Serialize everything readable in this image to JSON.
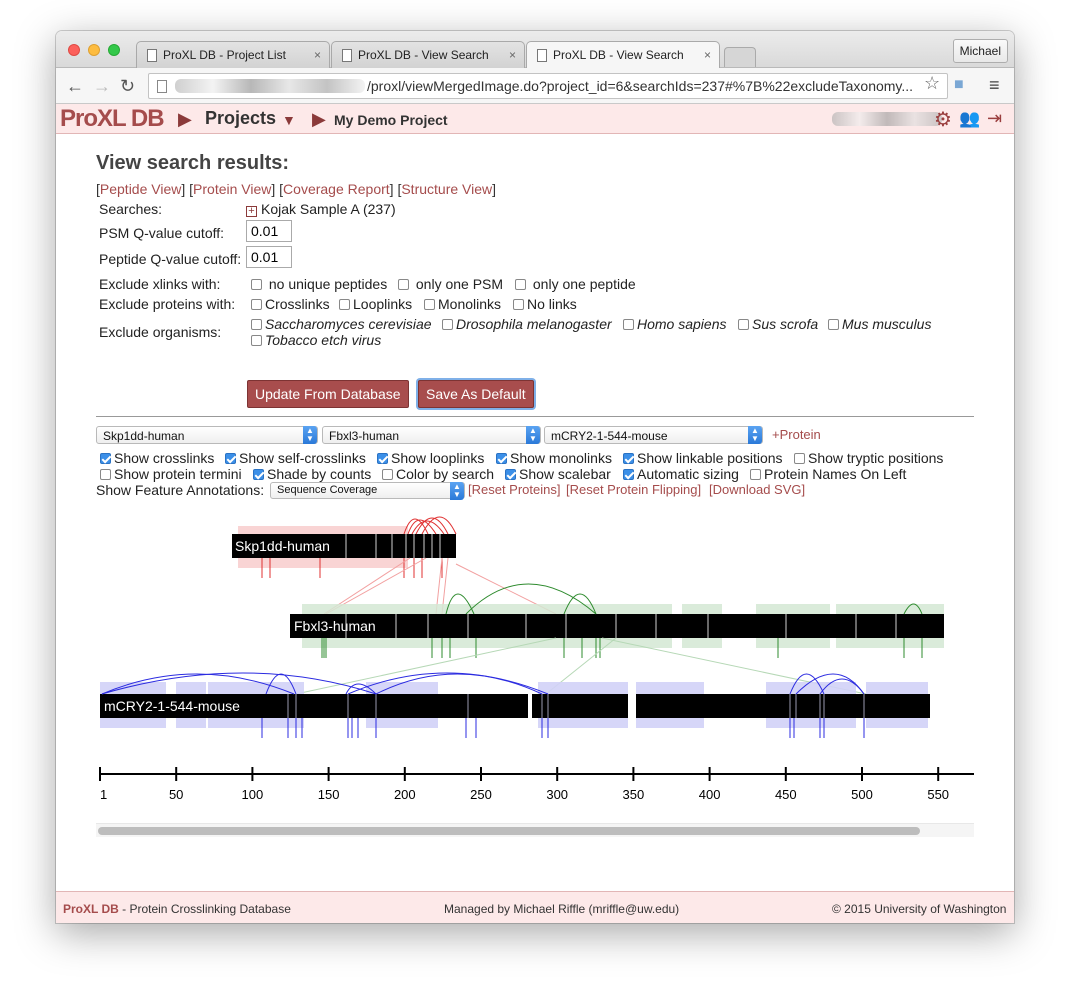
{
  "browser": {
    "tabs": [
      {
        "title": "ProXL DB - Project List",
        "close": "×"
      },
      {
        "title": "ProXL DB - View Search",
        "close": "×"
      },
      {
        "title": "ProXL DB - View Search",
        "close": "×"
      }
    ],
    "user": "Michael",
    "url": "/proxl/viewMergedImage.do?project_id=6&searchIds=237#%7B%22excludeTaxonomy..."
  },
  "header": {
    "logo": "ProXL DB",
    "projects": "Projects",
    "project_name": "My Demo Project"
  },
  "page": {
    "title": "View search results:",
    "views": {
      "peptide": "Peptide View",
      "protein": "Protein View",
      "coverage": "Coverage Report",
      "structure": "Structure View"
    },
    "searches_label": "Searches:",
    "search_name": "Kojak Sample A (237)",
    "psm_label": "PSM Q-value cutoff:",
    "psm_value": "0.01",
    "peptide_label": "Peptide Q-value cutoff:",
    "peptide_value": "0.01",
    "exclude_xlinks_label": "Exclude xlinks with:",
    "exclude_xlinks": [
      "no unique peptides",
      "only one PSM",
      "only one peptide"
    ],
    "exclude_proteins_label": "Exclude proteins with:",
    "exclude_proteins": [
      "Crosslinks",
      "Looplinks",
      "Monolinks",
      "No links"
    ],
    "exclude_organisms_label": "Exclude organisms:",
    "organisms": [
      "Saccharomyces cerevisiae",
      "Drosophila melanogaster",
      "Homo sapiens",
      "Sus scrofa",
      "Mus musculus",
      "Tobacco etch virus"
    ],
    "update_button": "Update From Database",
    "save_button": "Save As Default"
  },
  "viewer": {
    "proteins": [
      "Skp1dd-human",
      "Fbxl3-human",
      "mCRY2-1-544-mouse"
    ],
    "add_protein": "+Protein",
    "options_row1": [
      {
        "label": "Show crosslinks",
        "checked": true
      },
      {
        "label": "Show self-crosslinks",
        "checked": true
      },
      {
        "label": "Show looplinks",
        "checked": true
      },
      {
        "label": "Show monolinks",
        "checked": true
      },
      {
        "label": "Show linkable positions",
        "checked": true
      },
      {
        "label": "Show tryptic positions",
        "checked": false
      }
    ],
    "options_row2": [
      {
        "label": "Show protein termini",
        "checked": false
      },
      {
        "label": "Shade by counts",
        "checked": true
      },
      {
        "label": "Color by search",
        "checked": false
      },
      {
        "label": "Show scalebar",
        "checked": true
      },
      {
        "label": "Automatic sizing",
        "checked": true
      },
      {
        "label": "Protein Names On Left",
        "checked": false
      }
    ],
    "feature_label": "Show Feature Annotations:",
    "feature_value": "Sequence Coverage",
    "reset_proteins": "[Reset Proteins]",
    "reset_flipping": "[Reset Protein Flipping]",
    "download_svg": "[Download SVG]",
    "scale_ticks": [
      "1",
      "50",
      "100",
      "150",
      "200",
      "250",
      "300",
      "350",
      "400",
      "450",
      "500",
      "550"
    ],
    "colors": {
      "skp1": "#e03030",
      "fbxl3": "#2e8b2e",
      "mcry2": "#2b2be0"
    }
  },
  "footer": {
    "brand": "ProXL DB",
    "tagline": " - Protein Crosslinking Database",
    "managed": "Managed by Michael Riffle (mriffle@uw.edu)",
    "copyright": "© 2015 University of Washington"
  }
}
